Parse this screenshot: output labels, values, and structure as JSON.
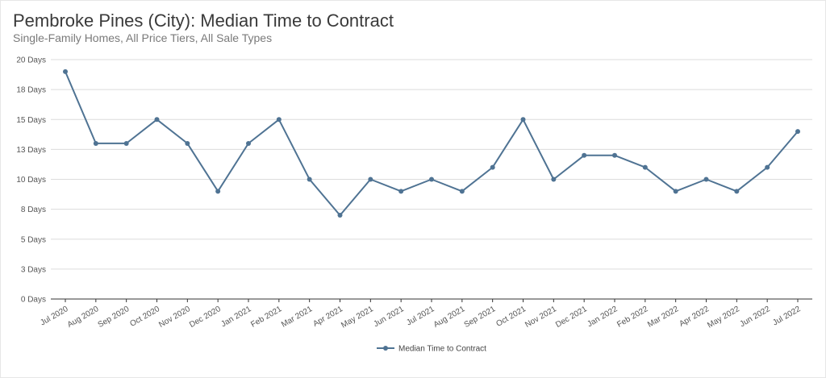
{
  "colors": {
    "line": "#4f7393",
    "grid": "#dcdcdc",
    "axis": "#333333"
  },
  "chart_data": {
    "type": "line",
    "title": "Pembroke Pines (City): Median Time to Contract",
    "subtitle": "Single-Family Homes, All Price Tiers, All Sale Types",
    "ylim": [
      0,
      20
    ],
    "y_ticks": [
      0,
      2.5,
      5,
      7.5,
      10,
      12.5,
      15,
      17.5,
      20
    ],
    "y_tick_labels": [
      "0 Days",
      "3 Days",
      "5 Days",
      "8 Days",
      "10 Days",
      "13 Days",
      "15 Days",
      "18 Days",
      "20 Days"
    ],
    "grid": true,
    "legend_position": "bottom",
    "categories": [
      "Jul 2020",
      "Aug 2020",
      "Sep 2020",
      "Oct 2020",
      "Nov 2020",
      "Dec 2020",
      "Jan 2021",
      "Feb 2021",
      "Mar 2021",
      "Apr 2021",
      "May 2021",
      "Jun 2021",
      "Jul 2021",
      "Aug 2021",
      "Sep 2021",
      "Oct 2021",
      "Nov 2021",
      "Dec 2021",
      "Jan 2022",
      "Feb 2022",
      "Mar 2022",
      "Apr 2022",
      "May 2022",
      "Jun 2022",
      "Jul 2022"
    ],
    "series": [
      {
        "name": "Median Time to Contract",
        "values": [
          19,
          13,
          13,
          15,
          13,
          9,
          13,
          15,
          10,
          7,
          10,
          9,
          10,
          9,
          11,
          15,
          10,
          12,
          12,
          11,
          9,
          10,
          9,
          11,
          14
        ]
      }
    ]
  }
}
